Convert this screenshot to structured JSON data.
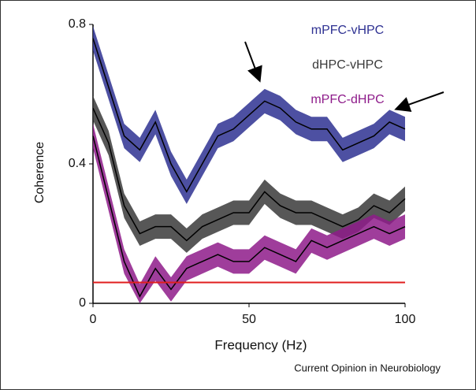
{
  "chart_data": {
    "type": "line",
    "xlabel": "Frequency (Hz)",
    "ylabel": "Coherence",
    "credit": "Current Opinion in Neurobiology",
    "xlim": [
      0,
      100
    ],
    "xticks": [
      0,
      50,
      100
    ],
    "ylim": [
      0,
      0.8
    ],
    "yticks": [
      0,
      0.4,
      0.8
    ],
    "x": [
      0,
      5,
      10,
      15,
      20,
      25,
      30,
      35,
      40,
      45,
      50,
      55,
      60,
      65,
      70,
      75,
      80,
      85,
      90,
      95,
      100
    ],
    "series": [
      {
        "name": "mPFC-vHPC",
        "color": "#2e3192",
        "band": 0.035,
        "values": [
          0.76,
          0.62,
          0.48,
          0.44,
          0.52,
          0.4,
          0.32,
          0.4,
          0.48,
          0.5,
          0.54,
          0.58,
          0.56,
          0.52,
          0.5,
          0.5,
          0.44,
          0.46,
          0.48,
          0.52,
          0.5
        ]
      },
      {
        "name": "dHPC-vHPC",
        "color": "#3a3a3a",
        "band": 0.035,
        "values": [
          0.56,
          0.46,
          0.28,
          0.2,
          0.22,
          0.22,
          0.18,
          0.22,
          0.24,
          0.26,
          0.26,
          0.32,
          0.28,
          0.26,
          0.26,
          0.24,
          0.22,
          0.24,
          0.28,
          0.26,
          0.3
        ]
      },
      {
        "name": "mPFC-dHPC",
        "color": "#8e1b8a",
        "band": 0.035,
        "values": [
          0.48,
          0.3,
          0.12,
          0.02,
          0.1,
          0.04,
          0.1,
          0.12,
          0.14,
          0.12,
          0.12,
          0.16,
          0.14,
          0.12,
          0.18,
          0.16,
          0.18,
          0.2,
          0.22,
          0.2,
          0.22
        ]
      }
    ],
    "threshold": {
      "value": 0.06,
      "color": "#e01e1e"
    }
  }
}
